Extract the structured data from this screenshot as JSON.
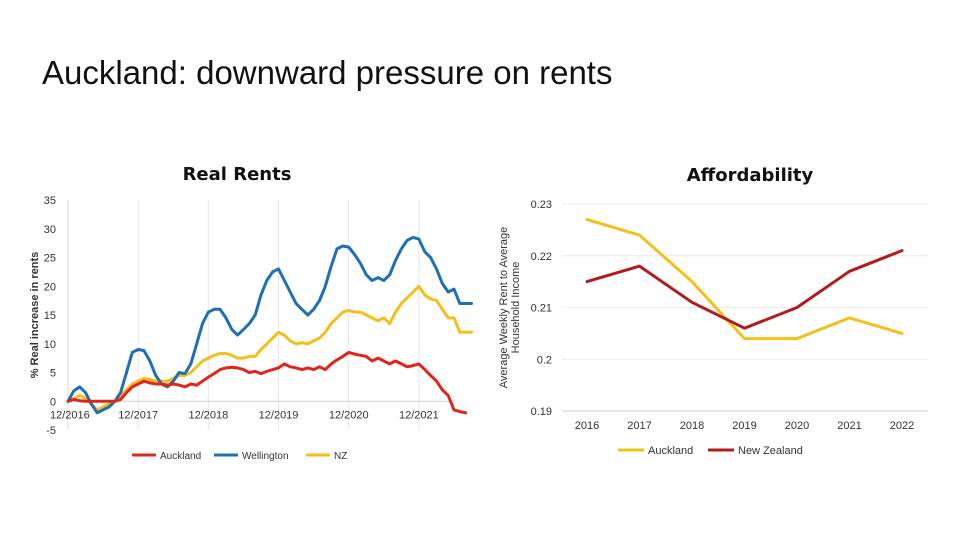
{
  "slide": {
    "title": "Auckland: downward pressure on rents"
  },
  "chart_data": [
    {
      "type": "line",
      "title": "Real Rents",
      "xlabel": "",
      "ylabel": "% Real increase in rents",
      "ylim": [
        -5,
        35
      ],
      "yticks": [
        -5,
        0,
        5,
        10,
        15,
        20,
        25,
        30,
        35
      ],
      "xlim": [
        0,
        66
      ],
      "xticks": [
        {
          "v": 0,
          "label": "12/2016"
        },
        {
          "v": 12,
          "label": "12/2017"
        },
        {
          "v": 24,
          "label": "12/2018"
        },
        {
          "v": 36,
          "label": "12/2019"
        },
        {
          "v": 48,
          "label": "12/2020"
        },
        {
          "v": 60,
          "label": "12/2021"
        }
      ],
      "grid": "vertical",
      "legend": "bottom",
      "series": [
        {
          "name": "Auckland",
          "color": "#e1251b",
          "points": [
            [
              0,
              0
            ],
            [
              1,
              0.3
            ],
            [
              2,
              0.1
            ],
            [
              3,
              0
            ],
            [
              4,
              0
            ],
            [
              5,
              0
            ],
            [
              6,
              0
            ],
            [
              7,
              0
            ],
            [
              8,
              0
            ],
            [
              9,
              0.3
            ],
            [
              10,
              1.5
            ],
            [
              11,
              2.5
            ],
            [
              12,
              3
            ],
            [
              13,
              3.5
            ],
            [
              14,
              3.2
            ],
            [
              15,
              3
            ],
            [
              16,
              3
            ],
            [
              17,
              2.8
            ],
            [
              18,
              3
            ],
            [
              19,
              2.8
            ],
            [
              20,
              2.5
            ],
            [
              21,
              3
            ],
            [
              22,
              2.8
            ],
            [
              23,
              3.5
            ],
            [
              24,
              4.2
            ],
            [
              25,
              4.8
            ],
            [
              26,
              5.5
            ],
            [
              27,
              5.8
            ],
            [
              28,
              5.9
            ],
            [
              29,
              5.8
            ],
            [
              30,
              5.5
            ],
            [
              31,
              5
            ],
            [
              32,
              5.2
            ],
            [
              33,
              4.8
            ],
            [
              34,
              5.2
            ],
            [
              35,
              5.5
            ],
            [
              36,
              5.8
            ],
            [
              37,
              6.5
            ],
            [
              38,
              6
            ],
            [
              39,
              5.8
            ],
            [
              40,
              5.5
            ],
            [
              41,
              5.8
            ],
            [
              42,
              5.5
            ],
            [
              43,
              6
            ],
            [
              44,
              5.5
            ],
            [
              45,
              6.5
            ],
            [
              46,
              7.2
            ],
            [
              47,
              7.8
            ],
            [
              48,
              8.5
            ],
            [
              49,
              8.2
            ],
            [
              50,
              8
            ],
            [
              51,
              7.8
            ],
            [
              52,
              7
            ],
            [
              53,
              7.5
            ],
            [
              54,
              7
            ],
            [
              55,
              6.5
            ],
            [
              56,
              7
            ],
            [
              57,
              6.5
            ],
            [
              58,
              6
            ],
            [
              59,
              6.2
            ],
            [
              60,
              6.5
            ],
            [
              61,
              5.5
            ],
            [
              62,
              4.5
            ],
            [
              63,
              3.5
            ],
            [
              64,
              2
            ],
            [
              65,
              1
            ],
            [
              66,
              -1.5
            ],
            [
              67,
              -1.8
            ],
            [
              68,
              -2
            ]
          ]
        },
        {
          "name": "Wellington",
          "color": "#1f6fb5",
          "points": [
            [
              0,
              0
            ],
            [
              1,
              1.8
            ],
            [
              2,
              2.5
            ],
            [
              3,
              1.5
            ],
            [
              4,
              -0.5
            ],
            [
              5,
              -2
            ],
            [
              6,
              -1.5
            ],
            [
              7,
              -1
            ],
            [
              8,
              0
            ],
            [
              9,
              1.5
            ],
            [
              10,
              5
            ],
            [
              11,
              8.5
            ],
            [
              12,
              9
            ],
            [
              13,
              8.8
            ],
            [
              14,
              7
            ],
            [
              15,
              4.5
            ],
            [
              16,
              3
            ],
            [
              17,
              2.5
            ],
            [
              18,
              3.5
            ],
            [
              19,
              5
            ],
            [
              20,
              4.8
            ],
            [
              21,
              6.5
            ],
            [
              22,
              10
            ],
            [
              23,
              13.5
            ],
            [
              24,
              15.5
            ],
            [
              25,
              16
            ],
            [
              26,
              16
            ],
            [
              27,
              14.5
            ],
            [
              28,
              12.5
            ],
            [
              29,
              11.5
            ],
            [
              30,
              12.5
            ],
            [
              31,
              13.5
            ],
            [
              32,
              15
            ],
            [
              33,
              18.5
            ],
            [
              34,
              21
            ],
            [
              35,
              22.5
            ],
            [
              36,
              23
            ],
            [
              37,
              21
            ],
            [
              38,
              19
            ],
            [
              39,
              17
            ],
            [
              40,
              16
            ],
            [
              41,
              15
            ],
            [
              42,
              16
            ],
            [
              43,
              17.5
            ],
            [
              44,
              20
            ],
            [
              45,
              23.5
            ],
            [
              46,
              26.5
            ],
            [
              47,
              27
            ],
            [
              48,
              26.8
            ],
            [
              49,
              25.5
            ],
            [
              50,
              24
            ],
            [
              51,
              22
            ],
            [
              52,
              21
            ],
            [
              53,
              21.5
            ],
            [
              54,
              21
            ],
            [
              55,
              22
            ],
            [
              56,
              24.5
            ],
            [
              57,
              26.5
            ],
            [
              58,
              28
            ],
            [
              59,
              28.5
            ],
            [
              60,
              28.2
            ],
            [
              61,
              26
            ],
            [
              62,
              25
            ],
            [
              63,
              23
            ],
            [
              64,
              20.5
            ],
            [
              65,
              19
            ],
            [
              66,
              19.5
            ],
            [
              67,
              17
            ],
            [
              68,
              17
            ],
            [
              69,
              17
            ]
          ]
        },
        {
          "name": "NZ",
          "color": "#f5bf1a",
          "points": [
            [
              0,
              0
            ],
            [
              1,
              0.5
            ],
            [
              2,
              1
            ],
            [
              3,
              0.5
            ],
            [
              4,
              -0.5
            ],
            [
              5,
              -1.5
            ],
            [
              6,
              -1
            ],
            [
              7,
              -0.5
            ],
            [
              8,
              0
            ],
            [
              9,
              1
            ],
            [
              10,
              2
            ],
            [
              11,
              3
            ],
            [
              12,
              3.5
            ],
            [
              13,
              4
            ],
            [
              14,
              3.8
            ],
            [
              15,
              3.5
            ],
            [
              16,
              3.5
            ],
            [
              17,
              3.5
            ],
            [
              18,
              4
            ],
            [
              19,
              4.5
            ],
            [
              20,
              4.5
            ],
            [
              21,
              5
            ],
            [
              22,
              6
            ],
            [
              23,
              7
            ],
            [
              24,
              7.5
            ],
            [
              25,
              8
            ],
            [
              26,
              8.3
            ],
            [
              27,
              8.3
            ],
            [
              28,
              8
            ],
            [
              29,
              7.5
            ],
            [
              30,
              7.5
            ],
            [
              31,
              7.8
            ],
            [
              32,
              7.8
            ],
            [
              33,
              9
            ],
            [
              34,
              10
            ],
            [
              35,
              11
            ],
            [
              36,
              12
            ],
            [
              37,
              11.5
            ],
            [
              38,
              10.5
            ],
            [
              39,
              10
            ],
            [
              40,
              10.2
            ],
            [
              41,
              10
            ],
            [
              42,
              10.5
            ],
            [
              43,
              11
            ],
            [
              44,
              12
            ],
            [
              45,
              13.5
            ],
            [
              46,
              14.5
            ],
            [
              47,
              15.5
            ],
            [
              48,
              15.8
            ],
            [
              49,
              15.5
            ],
            [
              50,
              15.5
            ],
            [
              51,
              15
            ],
            [
              52,
              14.5
            ],
            [
              53,
              14
            ],
            [
              54,
              14.5
            ],
            [
              55,
              13.5
            ],
            [
              56,
              15.5
            ],
            [
              57,
              17
            ],
            [
              58,
              18
            ],
            [
              59,
              19
            ],
            [
              60,
              20
            ],
            [
              61,
              18.5
            ],
            [
              62,
              17.8
            ],
            [
              63,
              17.5
            ],
            [
              64,
              16
            ],
            [
              65,
              14.5
            ],
            [
              66,
              14.5
            ],
            [
              67,
              12
            ],
            [
              68,
              12
            ],
            [
              69,
              12
            ]
          ]
        }
      ]
    },
    {
      "type": "line",
      "title": "Affordability",
      "xlabel": "",
      "ylabel": "Average Weekly Rent to Average Household Income",
      "ylim": [
        0.19,
        0.23
      ],
      "yticks": [
        "0.19",
        "0.2",
        "0.21",
        "0.22",
        "0.23"
      ],
      "categories": [
        "2016",
        "2017",
        "2018",
        "2019",
        "2020",
        "2021",
        "2022"
      ],
      "grid": "horizontal",
      "legend": "bottom",
      "series": [
        {
          "name": "Auckland",
          "color": "#f5bf1a",
          "values": [
            0.227,
            0.224,
            0.215,
            0.204,
            0.204,
            0.208,
            0.205
          ]
        },
        {
          "name": "New Zealand",
          "color": "#b31b1b",
          "values": [
            0.215,
            0.218,
            0.211,
            0.206,
            0.21,
            0.217,
            0.221
          ]
        }
      ]
    }
  ]
}
